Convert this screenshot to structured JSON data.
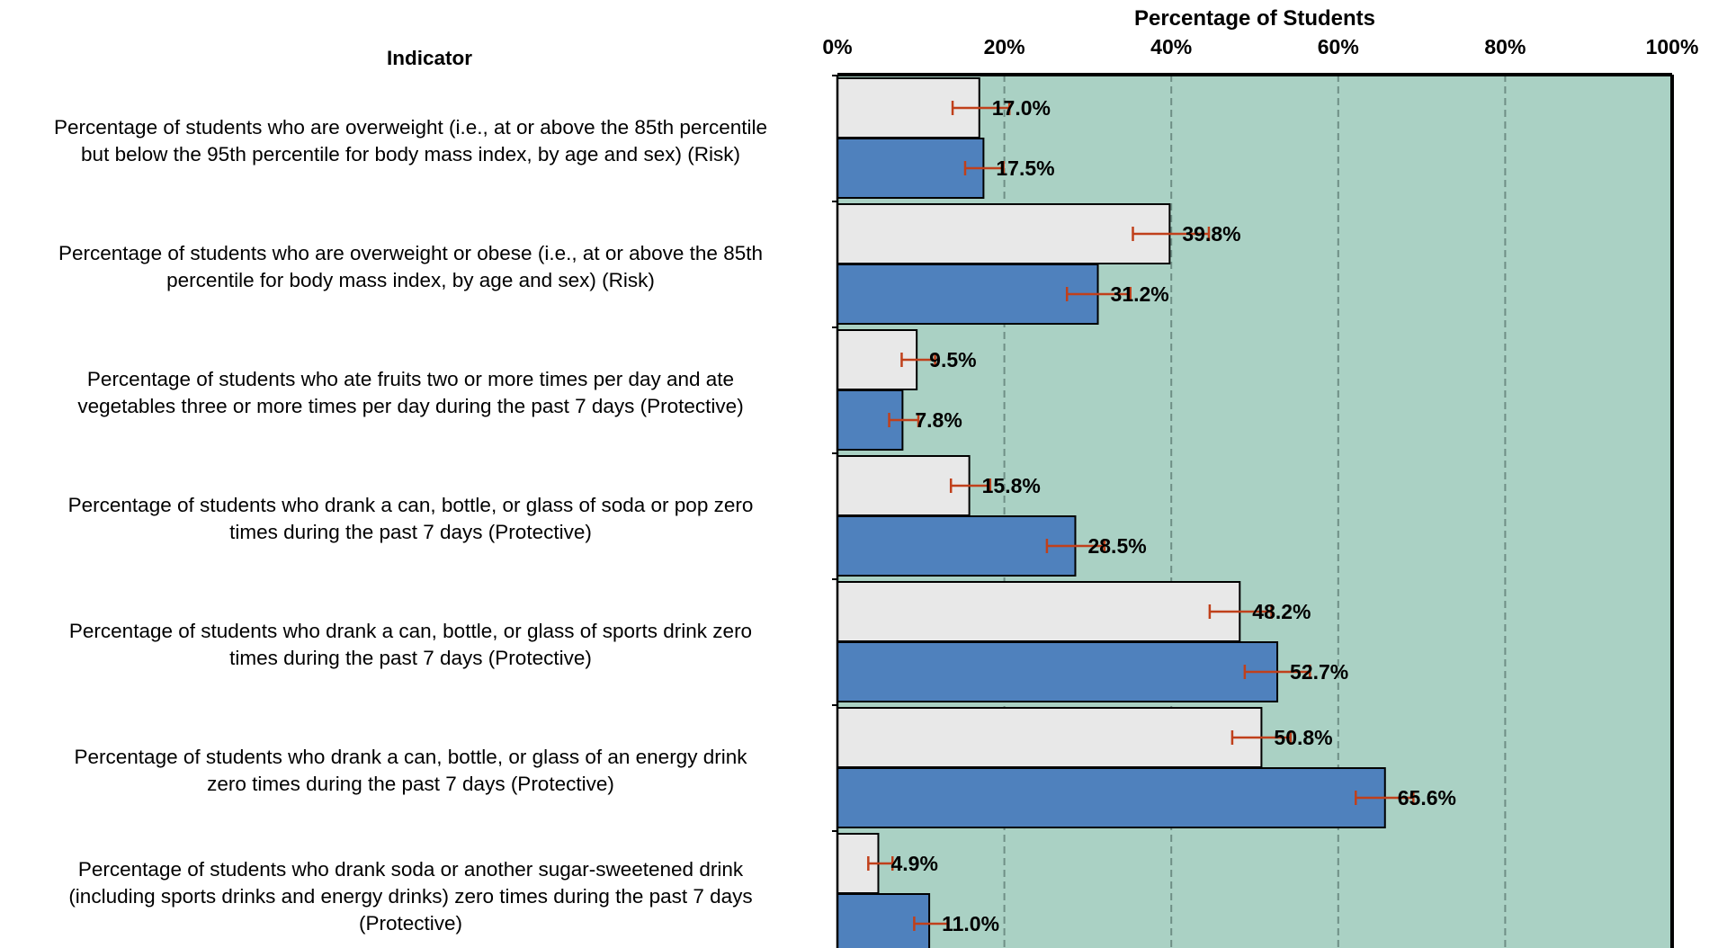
{
  "chart_data": {
    "type": "bar",
    "orientation": "horizontal",
    "indicator_header": "Indicator",
    "xlabel": "Percentage of Students",
    "xlim": [
      0,
      100
    ],
    "xticks": [
      "0%",
      "20%",
      "40%",
      "60%",
      "80%",
      "100%"
    ],
    "grid": "vertical dashed",
    "plot_background": "#aad1c4",
    "series": [
      {
        "color": "#e8e8e8",
        "values": [
          17.0,
          39.8,
          9.5,
          15.8,
          48.2,
          50.8,
          4.9
        ],
        "labels": [
          "17.0%",
          "39.8%",
          "9.5%",
          "15.8%",
          "48.2%",
          "50.8%",
          "4.9%"
        ],
        "ci_low": [
          13.8,
          35.4,
          7.7,
          13.6,
          44.6,
          47.3,
          3.7
        ],
        "ci_high": [
          20.6,
          44.5,
          11.7,
          18.3,
          52.0,
          54.3,
          6.6
        ]
      },
      {
        "color": "#4f81bd",
        "values": [
          17.5,
          31.2,
          7.8,
          28.5,
          52.7,
          65.6,
          11.0
        ],
        "labels": [
          "17.5%",
          "31.2%",
          "7.8%",
          "28.5%",
          "52.7%",
          "65.6%",
          "11.0%"
        ],
        "ci_low": [
          15.3,
          27.5,
          6.2,
          25.1,
          48.8,
          62.1,
          9.2
        ],
        "ci_high": [
          19.9,
          35.1,
          9.7,
          32.0,
          56.6,
          69.0,
          13.2
        ]
      }
    ],
    "error_bar_color": "#c0401b",
    "categories": [
      "Percentage of students who are overweight (i.e., at or above the 85th percentile but below the 95th percentile for body mass index, by age and sex) (Risk)",
      "Percentage of students who are overweight or obese (i.e., at or above the 85th percentile for body mass index, by age and sex) (Risk)",
      "Percentage of students who ate fruits two or more times per day and ate vegetables three or more times per day during the past 7 days (Protective)",
      "Percentage of students who drank a can, bottle, or glass of soda or pop zero times during the past 7 days (Protective)",
      "Percentage of students who drank a can, bottle, or glass of sports drink zero times during the past 7 days (Protective)",
      "Percentage of students who drank a can, bottle, or glass of an energy drink zero times during the past 7 days (Protective)",
      "Percentage of students who drank soda or another sugar-sweetened drink (including sports drinks and energy drinks) zero times during the past 7 days (Protective)"
    ],
    "category_lines": [
      [
        "Percentage of students who are overweight (i.e., at or above the 85th percentile",
        "but below the 95th percentile for body mass index, by age and sex) (Risk)"
      ],
      [
        "Percentage of students who are overweight or obese (i.e., at or above the 85th",
        "percentile for body mass index, by age and sex) (Risk)"
      ],
      [
        "Percentage of students who ate fruits two or more times per day and ate",
        "vegetables three or more times per day during the past 7 days (Protective)"
      ],
      [
        "Percentage of students who drank a can, bottle, or glass of soda or pop zero",
        "times during the past 7 days (Protective)"
      ],
      [
        "Percentage of students who drank a can, bottle, or glass of sports drink zero",
        "times during the past 7 days (Protective)"
      ],
      [
        "Percentage of students who drank a can, bottle, or glass of an energy drink",
        "zero times during the past 7 days (Protective)"
      ],
      [
        "Percentage of students who drank soda or another sugar-sweetened drink",
        "(including sports drinks and energy drinks) zero times during the past 7 days",
        "(Protective)"
      ]
    ]
  }
}
